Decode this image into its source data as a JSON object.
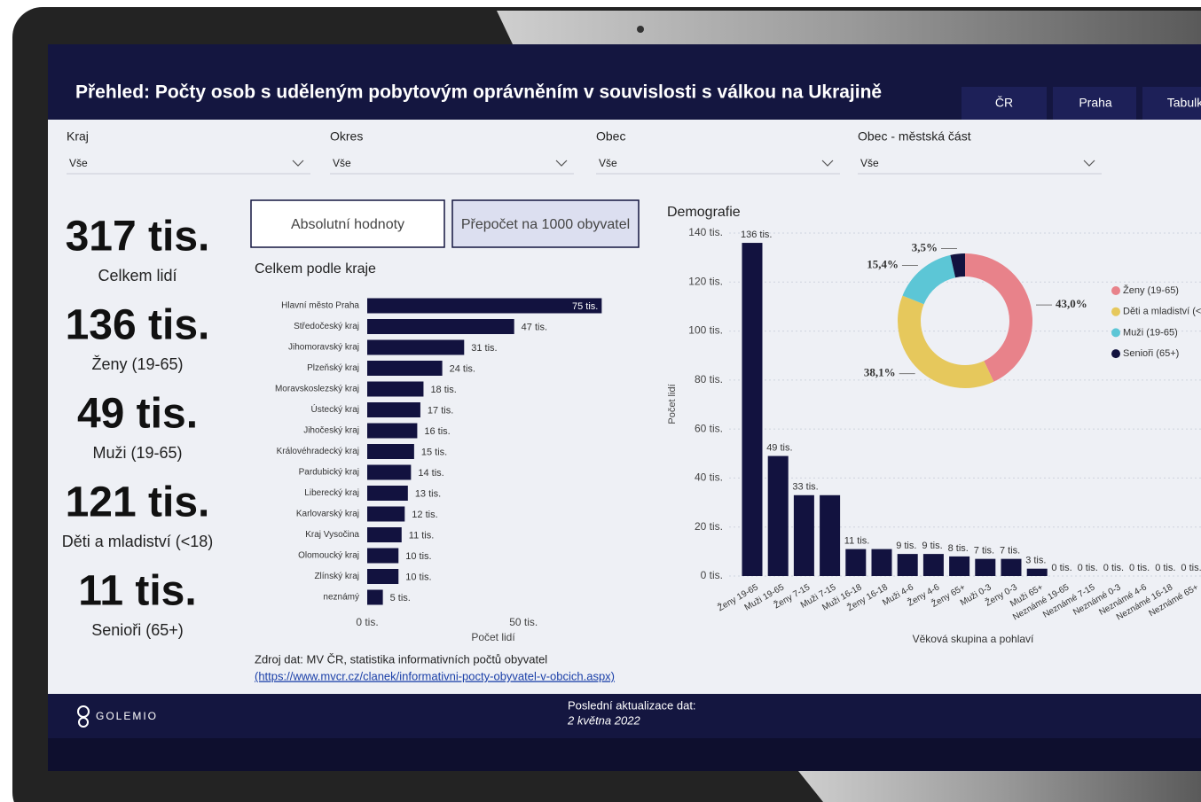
{
  "header": {
    "title": "Přehled: Počty osob s uděleným pobytovým oprávněním v souvislosti s válkou na Ukrajině",
    "tabs": [
      "ČR",
      "Praha",
      "Tabulk"
    ]
  },
  "filters": [
    {
      "label": "Kraj",
      "value": "Vše"
    },
    {
      "label": "Okres",
      "value": "Vše"
    },
    {
      "label": "Obec",
      "value": "Vše"
    },
    {
      "label": "Obec - městská část",
      "value": "Vše"
    }
  ],
  "kpis": [
    {
      "value": "317 tis.",
      "label": "Celkem lidí"
    },
    {
      "value": "136 tis.",
      "label": "Ženy (19-65)"
    },
    {
      "value": "49 tis.",
      "label": "Muži (19-65)"
    },
    {
      "value": "121 tis.",
      "label": "Děti a mladiství (<18)"
    },
    {
      "value": "11 tis.",
      "label": "Senioři (65+)"
    }
  ],
  "toggle": [
    "Absolutní hodnoty",
    "Přepočet na 1000 obyvatel"
  ],
  "chart_data": [
    {
      "type": "bar",
      "orientation": "horizontal",
      "title": "Celkem podle kraje",
      "categories": [
        "Hlavní město Praha",
        "Středočeský kraj",
        "Jihomoravský kraj",
        "Plzeňský kraj",
        "Moravskoslezský kraj",
        "Ústecký kraj",
        "Jihočeský kraj",
        "Královéhradecký kraj",
        "Pardubický kraj",
        "Liberecký kraj",
        "Karlovarský kraj",
        "Kraj Vysočina",
        "Olomoucký kraj",
        "Zlínský kraj",
        "neznámý"
      ],
      "values": [
        75,
        47,
        31,
        24,
        18,
        17,
        16,
        15,
        14,
        13,
        12,
        11,
        10,
        10,
        5
      ],
      "value_labels": [
        "75 tis.",
        "47 tis.",
        "31 tis.",
        "24 tis.",
        "18 tis.",
        "17 tis.",
        "16 tis.",
        "15 tis.",
        "14 tis.",
        "13 tis.",
        "12 tis.",
        "11 tis.",
        "10 tis.",
        "10 tis.",
        "5 tis."
      ],
      "color": "#12123f",
      "xlim": [
        0,
        80
      ],
      "xticks": [
        {
          "value": 0,
          "label": "0 tis."
        },
        {
          "value": 50,
          "label": "50 tis."
        }
      ],
      "x_label": "Počet lidí"
    },
    {
      "type": "bar",
      "orientation": "vertical",
      "title": "Demografie",
      "categories": [
        "Ženy 19-65",
        "Muži 19-65",
        "Ženy 7-15",
        "Muži 7-15",
        "Muži 16-18",
        "Ženy 16-18",
        "Muži 4-6",
        "Ženy 4-6",
        "Ženy 65+",
        "Muži 0-3",
        "Ženy 0-3",
        "Muži 65+",
        "Neznámé 19-65",
        "Neznámé 7-15",
        "Neznámé 0-3",
        "Neznámé 4-6",
        "Neznámé 16-18",
        "Neznámé 65+"
      ],
      "values": [
        136,
        49,
        33,
        33,
        11,
        11,
        9,
        9,
        8,
        7,
        7,
        3,
        0,
        0,
        0,
        0,
        0,
        0
      ],
      "value_labels": [
        "136 tis.",
        "49 tis.",
        "33 tis.",
        null,
        "11 tis.",
        null,
        "9 tis.",
        "9 tis.",
        "8 tis.",
        "7 tis.",
        "7 tis.",
        "3 tis.",
        "0 tis.",
        "0 tis.",
        "0 tis.",
        "0 tis.",
        "0 tis.",
        "0 tis."
      ],
      "color": "#12123f",
      "ylim": [
        0,
        140
      ],
      "yticks": [
        {
          "value": 0,
          "label": "0 tis."
        },
        {
          "value": 20,
          "label": "20 tis."
        },
        {
          "value": 40,
          "label": "40 tis."
        },
        {
          "value": 60,
          "label": "60 tis."
        },
        {
          "value": 80,
          "label": "80 tis."
        },
        {
          "value": 100,
          "label": "100 tis."
        },
        {
          "value": 120,
          "label": "120 tis."
        },
        {
          "value": 140,
          "label": "140 tis."
        }
      ],
      "grid": true,
      "y_label": "Počet lidí",
      "x_label": "Věková skupina a pohlaví"
    },
    {
      "type": "pie",
      "donut": true,
      "categories": [
        "Ženy (19-65)",
        "Děti a mladiství (<",
        "Muži (19-65)",
        "Senioři (65+)"
      ],
      "values": [
        43.0,
        38.1,
        15.4,
        3.5
      ],
      "value_labels": [
        "43,0%",
        "38,1%",
        "15,4%",
        "3,5%"
      ],
      "colors": [
        "#e8828a",
        "#e6c85c",
        "#5cc6d6",
        "#12123f"
      ],
      "legend": "right"
    }
  ],
  "source": {
    "text": "Zdroj dat: MV ČR, statistika informativních počtů obyvatel",
    "link": "(https://www.mvcr.cz/clanek/informativni-pocty-obyvatel-v-obcich.aspx)"
  },
  "footer": {
    "brand": "GOLEMIO",
    "update_label": "Poslední aktualizace dat:",
    "update_date": "2 května 2022"
  }
}
